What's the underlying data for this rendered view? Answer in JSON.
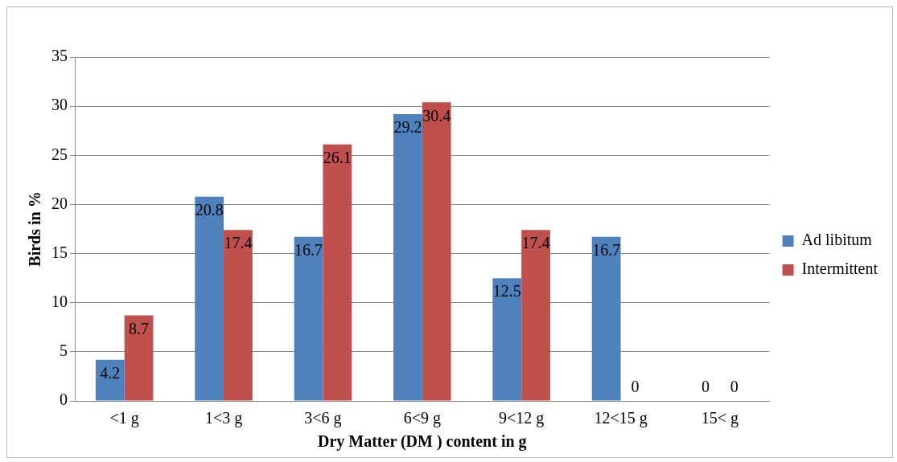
{
  "chart_data": {
    "type": "bar",
    "xlabel": "Dry Matter (DM ) content in g",
    "ylabel": "Birds in %",
    "categories": [
      "<1 g",
      "1<3 g",
      "3<6 g",
      "6<9 g",
      "9<12 g",
      "12<15 g",
      "15< g"
    ],
    "series": [
      {
        "name": "Ad libitum",
        "color": "#4f81bd",
        "values": [
          4.2,
          20.8,
          16.7,
          29.2,
          12.5,
          16.7,
          0
        ]
      },
      {
        "name": "Intermittent",
        "color": "#c0504d",
        "values": [
          8.7,
          17.4,
          26.1,
          30.4,
          17.4,
          0,
          0
        ]
      }
    ],
    "ylim": [
      0,
      35
    ],
    "yticks": [
      0,
      5,
      10,
      15,
      20,
      25,
      30,
      35
    ],
    "grid": "y",
    "legend": "right",
    "data_labels": true
  }
}
